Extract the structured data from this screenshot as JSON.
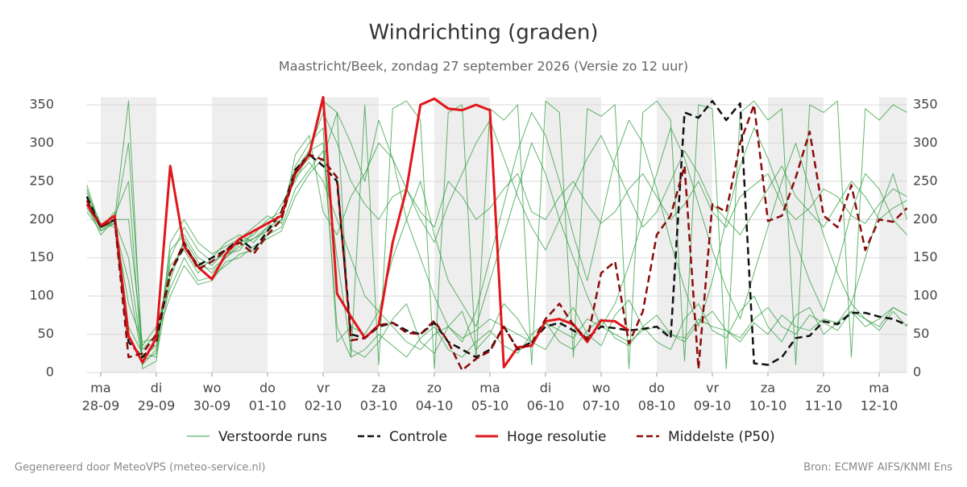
{
  "chart_data": {
    "type": "line",
    "title": "Windrichting (graden)",
    "subtitle": "Maastricht/Beek, zondag 27 september 2026 (Versie zo 12 uur)",
    "footer_left": "Gegenereerd door MeteoVPS (meteo-service.nl)",
    "footer_right": "Bron: ECMWF AIFS/KNMI Ens",
    "xlim": [
      -6,
      348
    ],
    "x": [
      -6,
      0,
      6,
      12,
      18,
      24,
      30,
      36,
      42,
      48,
      54,
      60,
      66,
      72,
      78,
      84,
      90,
      96,
      102,
      108,
      114,
      120,
      126,
      132,
      138,
      144,
      150,
      156,
      162,
      168,
      174,
      180,
      186,
      192,
      198,
      204,
      210,
      216,
      222,
      228,
      234,
      240,
      246,
      252,
      258,
      264,
      270,
      276,
      282,
      288,
      294,
      300,
      306,
      312,
      318,
      324,
      330,
      336,
      342,
      348
    ],
    "xticks": [
      {
        "value": 0,
        "label": "ma",
        "sublabel": "28-09"
      },
      {
        "value": 24,
        "label": "di",
        "sublabel": "29-09"
      },
      {
        "value": 48,
        "label": "wo",
        "sublabel": "30-09"
      },
      {
        "value": 72,
        "label": "do",
        "sublabel": "01-10"
      },
      {
        "value": 96,
        "label": "vr",
        "sublabel": "02-10"
      },
      {
        "value": 120,
        "label": "za",
        "sublabel": "03-10"
      },
      {
        "value": 144,
        "label": "zo",
        "sublabel": "04-10"
      },
      {
        "value": 168,
        "label": "ma",
        "sublabel": "05-10"
      },
      {
        "value": 192,
        "label": "di",
        "sublabel": "06-10"
      },
      {
        "value": 216,
        "label": "wo",
        "sublabel": "07-10"
      },
      {
        "value": 240,
        "label": "do",
        "sublabel": "08-10"
      },
      {
        "value": 264,
        "label": "vr",
        "sublabel": "09-10"
      },
      {
        "value": 288,
        "label": "za",
        "sublabel": "10-10"
      },
      {
        "value": 312,
        "label": "zo",
        "sublabel": "11-10"
      },
      {
        "value": 336,
        "label": "ma",
        "sublabel": "12-10"
      }
    ],
    "ylim": [
      0,
      360
    ],
    "yticks": [
      0,
      50,
      100,
      150,
      200,
      250,
      300,
      350
    ],
    "y2lim": [
      0,
      360
    ],
    "y2ticks": [
      0,
      50,
      100,
      150,
      200,
      250,
      300,
      350
    ],
    "grid": true,
    "legend": "bottom",
    "ensemble": {
      "name": "Verstoorde runs",
      "color": "#2e9e3e",
      "members": [
        [
          240,
          185,
          200,
          355,
          10,
          30,
          160,
          180,
          150,
          140,
          160,
          170,
          180,
          200,
          210,
          270,
          300,
          320,
          40,
          60,
          50,
          80,
          60,
          40,
          30,
          50,
          60,
          45,
          55,
          70,
          60,
          50,
          40,
          65,
          55,
          45,
          70,
          60,
          50,
          40,
          55,
          60,
          50,
          45,
          70,
          60,
          55,
          40,
          65,
          50,
          75,
          60,
          55,
          70,
          65,
          80,
          60,
          70,
          85,
          75
        ],
        [
          225,
          190,
          195,
          300,
          30,
          50,
          140,
          160,
          130,
          150,
          170,
          180,
          170,
          190,
          220,
          250,
          290,
          340,
          300,
          250,
          220,
          200,
          230,
          240,
          210,
          190,
          250,
          230,
          200,
          215,
          240,
          260,
          210,
          200,
          230,
          250,
          220,
          195,
          210,
          240,
          260,
          230,
          200,
          220,
          250,
          210,
          190,
          230,
          245,
          260,
          220,
          200,
          215,
          240,
          230,
          205,
          195,
          220,
          240,
          230
        ],
        [
          215,
          188,
          210,
          60,
          25,
          20,
          120,
          175,
          145,
          130,
          150,
          165,
          175,
          185,
          200,
          260,
          280,
          355,
          340,
          20,
          350,
          10,
          345,
          355,
          330,
          5,
          340,
          350,
          15,
          345,
          330,
          350,
          10,
          355,
          340,
          20,
          345,
          335,
          350,
          5,
          340,
          355,
          330,
          15,
          350,
          345,
          5,
          340,
          355,
          330,
          345,
          10,
          350,
          340,
          355,
          20,
          345,
          330,
          350,
          340
        ],
        [
          235,
          195,
          190,
          120,
          15,
          25,
          150,
          190,
          160,
          145,
          155,
          160,
          185,
          195,
          205,
          255,
          275,
          250,
          200,
          150,
          100,
          80,
          150,
          200,
          250,
          180,
          120,
          90,
          60,
          120,
          180,
          240,
          300,
          260,
          200,
          150,
          100,
          60,
          90,
          140,
          200,
          260,
          320,
          280,
          220,
          160,
          110,
          70,
          130,
          190,
          250,
          300,
          240,
          180,
          130,
          90,
          150,
          210,
          260,
          200
        ],
        [
          220,
          180,
          200,
          200,
          35,
          60,
          110,
          150,
          120,
          125,
          140,
          155,
          160,
          180,
          190,
          240,
          265,
          290,
          150,
          30,
          20,
          40,
          70,
          90,
          40,
          25,
          60,
          80,
          30,
          50,
          90,
          70,
          40,
          30,
          60,
          85,
          50,
          35,
          75,
          95,
          60,
          40,
          30,
          70,
          90,
          55,
          45,
          80,
          100,
          60,
          40,
          75,
          85,
          50,
          65,
          90,
          70,
          55,
          80,
          60
        ],
        [
          245,
          190,
          205,
          250,
          5,
          15,
          170,
          200,
          170,
          155,
          165,
          175,
          190,
          205,
          195,
          285,
          310,
          210,
          180,
          230,
          260,
          300,
          280,
          240,
          200,
          170,
          220,
          260,
          300,
          330,
          280,
          230,
          190,
          160,
          200,
          240,
          280,
          310,
          270,
          230,
          190,
          210,
          250,
          290,
          260,
          220,
          200,
          180,
          210,
          240,
          270,
          230,
          210,
          190,
          220,
          250,
          230,
          200,
          215,
          225
        ],
        [
          230,
          192,
          198,
          150,
          20,
          35,
          130,
          170,
          140,
          135,
          150,
          170,
          175,
          190,
          200,
          265,
          290,
          300,
          60,
          20,
          30,
          50,
          35,
          20,
          45,
          60,
          30,
          20,
          40,
          55,
          35,
          25,
          50,
          65,
          40,
          30,
          55,
          70,
          45,
          35,
          60,
          75,
          50,
          40,
          65,
          80,
          55,
          45,
          70,
          85,
          60,
          50,
          75,
          65,
          55,
          80,
          70,
          60,
          85,
          75
        ],
        [
          210,
          185,
          195,
          90,
          40,
          45,
          100,
          140,
          115,
          120,
          145,
          150,
          165,
          175,
          185,
          230,
          260,
          280,
          340,
          300,
          250,
          330,
          280,
          200,
          150,
          100,
          60,
          40,
          80,
          150,
          220,
          290,
          340,
          310,
          250,
          180,
          120,
          200,
          280,
          330,
          300,
          240,
          170,
          110,
          60,
          120,
          200,
          270,
          320,
          280,
          230,
          170,
          120,
          80,
          140,
          210,
          260,
          240,
          200,
          180
        ]
      ]
    },
    "series": [
      {
        "name": "Controle",
        "color": "#111111",
        "dash": true,
        "values": [
          230,
          190,
          200,
          40,
          20,
          40,
          130,
          165,
          140,
          150,
          160,
          175,
          160,
          185,
          210,
          265,
          285,
          270,
          250,
          50,
          45,
          60,
          65,
          55,
          50,
          65,
          40,
          30,
          20,
          30,
          60,
          30,
          40,
          60,
          65,
          55,
          45,
          60,
          58,
          55,
          57,
          60,
          45,
          340,
          333,
          355,
          330,
          352,
          12,
          10,
          20,
          45,
          48,
          67,
          63,
          78,
          78,
          73,
          70,
          62
        ]
      },
      {
        "name": "Hoge resolutie",
        "color": "#e0161b",
        "dash": false,
        "values": [
          220,
          192,
          205,
          48,
          13,
          45,
          270,
          165,
          138,
          122,
          155,
          175,
          185,
          195,
          205,
          260,
          285,
          360,
          103,
          73,
          45,
          62,
          170,
          240,
          350,
          358,
          345,
          343,
          350,
          343,
          7,
          33,
          35,
          67,
          70,
          63,
          40,
          68,
          67,
          55,
          null,
          null,
          null,
          null,
          null,
          null,
          null,
          null,
          null,
          null,
          null,
          null,
          null,
          null,
          null,
          null,
          null,
          null,
          null,
          null
        ]
      },
      {
        "name": "Middelste (P50)",
        "color": "#8b0a0a",
        "dash": true,
        "values": [
          225,
          190,
          200,
          20,
          25,
          50,
          130,
          170,
          135,
          145,
          160,
          170,
          155,
          180,
          200,
          262,
          285,
          278,
          255,
          42,
          45,
          62,
          65,
          52,
          50,
          68,
          40,
          3,
          18,
          28,
          60,
          30,
          38,
          70,
          90,
          62,
          43,
          130,
          145,
          38,
          80,
          180,
          205,
          270,
          5,
          220,
          210,
          300,
          350,
          198,
          205,
          255,
          315,
          205,
          190,
          245,
          160,
          200,
          197,
          215
        ]
      }
    ]
  }
}
